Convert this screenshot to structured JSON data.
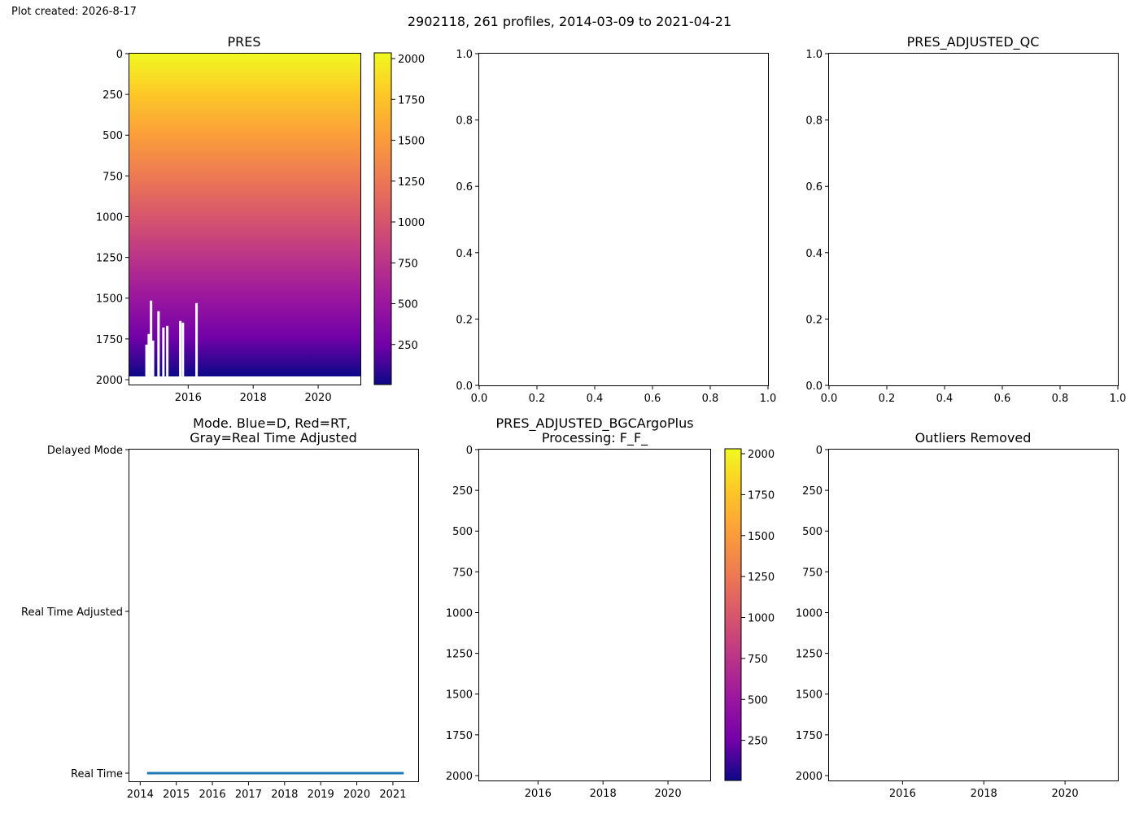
{
  "header": {
    "created_note": "Plot created: 2026-8-17",
    "suptitle": "2902118, 261 profiles, 2014-03-09 to 2021-04-21"
  },
  "colors": {
    "plasma_low": "#f0f921",
    "plasma_mid": "#e16462",
    "plasma_high": "#0d0887",
    "mode_line": "#1f77b4"
  },
  "chart_data": [
    {
      "type": "heatmap",
      "title": "PRES",
      "colormap": "plasma_r",
      "x_ticks": [
        "2016",
        "2018",
        "2020"
      ],
      "x_range": [
        2014.19,
        2021.3
      ],
      "y_inverted": true,
      "y_range": [
        0,
        2030
      ],
      "y_ticks": [
        0,
        250,
        500,
        750,
        1000,
        1250,
        1500,
        1750,
        2000
      ],
      "colorbar_range": [
        5,
        2030
      ],
      "colorbar_ticks": [
        250,
        500,
        750,
        1000,
        1250,
        1500,
        1750,
        2000
      ],
      "data_note_bottom_depth_approx": 1985
    },
    {
      "type": "scatter",
      "title": "",
      "xlim": [
        0,
        1
      ],
      "ylim": [
        0,
        1
      ],
      "x_ticks": [
        "0.0",
        "0.2",
        "0.4",
        "0.6",
        "0.8",
        "1.0"
      ],
      "y_ticks": [
        "0.0",
        "0.2",
        "0.4",
        "0.6",
        "0.8",
        "1.0"
      ],
      "series": []
    },
    {
      "type": "scatter",
      "title": "PRES_ADJUSTED_QC",
      "xlim": [
        0,
        1
      ],
      "ylim": [
        0,
        1
      ],
      "x_ticks": [
        "0.0",
        "0.2",
        "0.4",
        "0.6",
        "0.8",
        "1.0"
      ],
      "y_ticks": [
        "0.0",
        "0.2",
        "0.4",
        "0.6",
        "0.8",
        "1.0"
      ],
      "series": []
    },
    {
      "type": "line",
      "title_line1": "Mode. Blue=D, Red=RT,",
      "title_line2": "Gray=Real Time Adjusted",
      "x_ticks": [
        "2014",
        "2015",
        "2016",
        "2017",
        "2018",
        "2019",
        "2020",
        "2021"
      ],
      "x_range": [
        2013.7,
        2021.7
      ],
      "y_categories": [
        "Real Time",
        "Real Time Adjusted",
        "Delayed Mode"
      ],
      "series": [
        {
          "x": [
            2014.19,
            2021.3
          ],
          "y": [
            "Real Time",
            "Real Time"
          ]
        }
      ]
    },
    {
      "type": "heatmap",
      "title_line1": "PRES_ADJUSTED_BGCArgoPlus",
      "title_line2": "Processing: F_F_",
      "x_ticks": [
        "2016",
        "2018",
        "2020"
      ],
      "y_inverted": true,
      "y_ticks": [
        0,
        250,
        500,
        750,
        1000,
        1250,
        1500,
        1750,
        2000
      ],
      "colorbar_ticks": [
        250,
        500,
        750,
        1000,
        1250,
        1500,
        1750,
        2000
      ],
      "empty": true
    },
    {
      "type": "heatmap",
      "title": "Outliers Removed",
      "x_ticks": [
        "2016",
        "2018",
        "2020"
      ],
      "y_inverted": true,
      "y_ticks": [
        0,
        250,
        500,
        750,
        1000,
        1250,
        1500,
        1750,
        2000
      ],
      "empty": true
    }
  ]
}
